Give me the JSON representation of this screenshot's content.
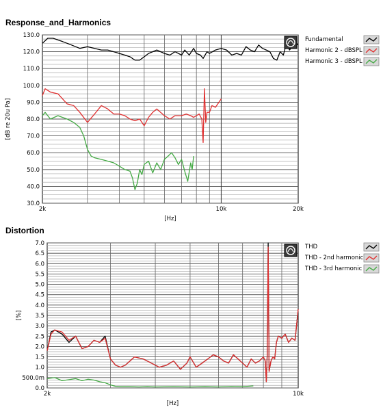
{
  "chart_data": [
    {
      "type": "line",
      "title": "Response_and_Harmonics",
      "xlabel": "[Hz]",
      "ylabel": "[dB re 20u Pa]",
      "xscale": "log",
      "xlim": [
        2000,
        20000
      ],
      "ylim": [
        30,
        130
      ],
      "grid": true,
      "legend_position": "right",
      "x_tick_labels": [
        {
          "value": 2000,
          "label": "2k"
        },
        {
          "value": 10000,
          "label": "10k"
        },
        {
          "value": 20000,
          "label": "20k"
        }
      ],
      "y_tick_labels": [
        {
          "value": 30,
          "label": "30.0"
        },
        {
          "value": 40,
          "label": "40.0"
        },
        {
          "value": 50,
          "label": "50.0"
        },
        {
          "value": 60,
          "label": "60.0"
        },
        {
          "value": 70,
          "label": "70.0"
        },
        {
          "value": 80,
          "label": "80.0"
        },
        {
          "value": 90,
          "label": "90.0"
        },
        {
          "value": 100,
          "label": "100.0"
        },
        {
          "value": 110,
          "label": "110.0"
        },
        {
          "value": 120,
          "label": "120.0"
        },
        {
          "value": 130,
          "label": "130.0"
        }
      ],
      "series": [
        {
          "name": "Fundamental",
          "color": "#000000",
          "x": [
            2000,
            2100,
            2200,
            2400,
            2600,
            2800,
            3000,
            3200,
            3400,
            3600,
            3800,
            4000,
            4200,
            4400,
            4600,
            4800,
            5000,
            5200,
            5400,
            5600,
            5800,
            6000,
            6300,
            6600,
            7000,
            7200,
            7500,
            7800,
            8000,
            8300,
            8500,
            8800,
            9000,
            9500,
            10000,
            10500,
            11000,
            11500,
            12000,
            12500,
            13000,
            13500,
            14000,
            14500,
            15000,
            15500,
            16000,
            16500,
            17000,
            17500,
            18000,
            18500,
            19000,
            19500,
            20000
          ],
          "y": [
            125,
            128,
            128,
            126,
            124,
            122,
            123,
            122,
            121,
            121,
            120,
            119,
            118,
            117,
            115,
            115,
            117,
            119,
            120,
            121,
            120,
            119,
            118,
            120,
            118,
            121,
            118,
            122,
            119,
            118,
            116,
            120,
            119,
            121,
            122,
            121,
            118,
            119,
            118,
            123,
            121,
            120,
            124,
            122,
            121,
            120,
            116,
            115,
            120,
            118,
            125,
            121,
            123,
            126,
            124
          ]
        },
        {
          "name": "Harmonic 2 - dBSPL",
          "color": "#e03030",
          "x": [
            2000,
            2050,
            2150,
            2300,
            2500,
            2650,
            2800,
            3000,
            3200,
            3400,
            3600,
            3800,
            4000,
            4200,
            4400,
            4600,
            4800,
            5000,
            5200,
            5400,
            5600,
            5800,
            6000,
            6300,
            6600,
            7000,
            7300,
            7600,
            7800,
            8000,
            8200,
            8400,
            8500,
            8600,
            8700,
            8800,
            9000,
            9200,
            9500,
            9800,
            10000
          ],
          "y": [
            94,
            98,
            96,
            95,
            89,
            88,
            84,
            78,
            83,
            88,
            86,
            83,
            83,
            82,
            80,
            79,
            80,
            76,
            81,
            84,
            86,
            84,
            82,
            80,
            82,
            82,
            83,
            82,
            81,
            82,
            83,
            80,
            66,
            98,
            78,
            84,
            84,
            88,
            87,
            90,
            92
          ]
        },
        {
          "name": "Harmonic 3 - dBSPL",
          "color": "#44aa44",
          "x": [
            2000,
            2050,
            2150,
            2300,
            2500,
            2650,
            2800,
            2900,
            3000,
            3100,
            3200,
            3400,
            3600,
            3800,
            4000,
            4200,
            4400,
            4500,
            4600,
            4700,
            4800,
            4900,
            5000,
            5200,
            5400,
            5600,
            5800,
            6000,
            6200,
            6400,
            6600,
            6800,
            7000,
            7200,
            7400,
            7600,
            7700,
            7800
          ],
          "y": [
            82,
            84,
            80,
            82,
            80,
            78,
            75,
            70,
            62,
            58,
            57,
            56,
            55,
            54,
            52,
            50,
            49,
            45,
            38,
            42,
            50,
            47,
            53,
            55,
            48,
            54,
            50,
            56,
            58,
            60,
            57,
            53,
            56,
            49,
            43,
            54,
            50,
            58
          ]
        }
      ]
    },
    {
      "type": "line",
      "title": "Distortion",
      "xlabel": "[Hz]",
      "ylabel": "[%]",
      "xscale": "log",
      "xlim": [
        2000,
        10000
      ],
      "ylim": [
        0,
        7
      ],
      "grid": true,
      "legend_position": "right",
      "x_tick_labels": [
        {
          "value": 2000,
          "label": "2k"
        },
        {
          "value": 10000,
          "label": "10k"
        }
      ],
      "y_tick_labels": [
        {
          "value": 0,
          "label": "0.0"
        },
        {
          "value": 0.5,
          "label": "500.0m"
        },
        {
          "value": 1,
          "label": "1.0"
        },
        {
          "value": 1.5,
          "label": "1.5"
        },
        {
          "value": 2,
          "label": "2.0"
        },
        {
          "value": 2.5,
          "label": "2.5"
        },
        {
          "value": 3,
          "label": "3.0"
        },
        {
          "value": 3.5,
          "label": "3.5"
        },
        {
          "value": 4,
          "label": "4.0"
        },
        {
          "value": 4.5,
          "label": "4.5"
        },
        {
          "value": 5,
          "label": "5.0"
        },
        {
          "value": 5.5,
          "label": "5.5"
        },
        {
          "value": 6,
          "label": "6.0"
        },
        {
          "value": 6.5,
          "label": "6.5"
        },
        {
          "value": 7,
          "label": "7.0"
        }
      ],
      "series": [
        {
          "name": "THD",
          "color": "#000000",
          "x": [
            2000,
            2050,
            2100,
            2200,
            2300,
            2400,
            2500,
            2600,
            2700,
            2800,
            2900,
            3000,
            3100,
            3200,
            3300,
            3400,
            3500,
            3700,
            3900,
            4100,
            4300,
            4500,
            4700,
            4900,
            5000,
            5200,
            5400,
            5600,
            5800,
            6000,
            6200,
            6400,
            6600,
            6800,
            7000,
            7200,
            7400,
            7600,
            7800,
            8000,
            8100,
            8150,
            8200,
            8250,
            8300,
            8400,
            8500,
            8600,
            8700,
            8800,
            9000,
            9200,
            9400,
            9600,
            9800,
            10000
          ],
          "y": [
            1.8,
            2.7,
            2.8,
            2.6,
            2.2,
            2.5,
            1.9,
            2.0,
            2.3,
            2.2,
            2.5,
            1.4,
            1.1,
            1.0,
            1.1,
            1.3,
            1.5,
            1.4,
            1.2,
            1.0,
            1.1,
            1.3,
            0.9,
            1.2,
            1.5,
            1.0,
            1.2,
            1.4,
            1.6,
            1.5,
            1.3,
            1.2,
            1.6,
            1.4,
            1.2,
            1.0,
            1.4,
            1.2,
            1.3,
            1.5,
            1.3,
            0.3,
            1.6,
            7.0,
            0.8,
            1.3,
            1.5,
            1.4,
            2.2,
            2.5,
            2.4,
            2.6,
            2.2,
            2.4,
            2.3,
            3.8
          ]
        },
        {
          "name": "THD - 2nd harmonic",
          "color": "#e03030",
          "x": [
            2000,
            2050,
            2100,
            2200,
            2300,
            2400,
            2500,
            2600,
            2700,
            2800,
            2900,
            3000,
            3100,
            3200,
            3300,
            3400,
            3500,
            3700,
            3900,
            4100,
            4300,
            4500,
            4700,
            4900,
            5000,
            5200,
            5400,
            5600,
            5800,
            6000,
            6200,
            6400,
            6600,
            6800,
            7000,
            7200,
            7400,
            7600,
            7800,
            8000,
            8100,
            8150,
            8200,
            8250,
            8300,
            8400,
            8500,
            8600,
            8700,
            8800,
            9000,
            9200,
            9400,
            9600,
            9800,
            10000
          ],
          "y": [
            1.8,
            2.6,
            2.8,
            2.7,
            2.3,
            2.5,
            1.9,
            2.0,
            2.3,
            2.2,
            2.4,
            1.4,
            1.1,
            1.0,
            1.1,
            1.3,
            1.5,
            1.4,
            1.2,
            1.0,
            1.1,
            1.3,
            0.9,
            1.2,
            1.5,
            1.0,
            1.2,
            1.4,
            1.6,
            1.5,
            1.3,
            1.2,
            1.6,
            1.4,
            1.2,
            1.0,
            1.4,
            1.2,
            1.3,
            1.5,
            1.3,
            0.3,
            1.6,
            6.8,
            0.8,
            1.3,
            1.5,
            1.4,
            2.2,
            2.5,
            2.4,
            2.6,
            2.2,
            2.4,
            2.3,
            3.8
          ]
        },
        {
          "name": "THD - 3rd harmonic",
          "color": "#44aa44",
          "x": [
            2000,
            2100,
            2200,
            2300,
            2400,
            2500,
            2600,
            2700,
            2800,
            2900,
            3000,
            3100,
            3200,
            3400,
            3600,
            3800,
            4000,
            4500,
            5000,
            5500,
            6000,
            6500,
            7000,
            7500
          ],
          "y": [
            0.45,
            0.5,
            0.35,
            0.4,
            0.45,
            0.35,
            0.42,
            0.38,
            0.3,
            0.25,
            0.15,
            0.08,
            0.06,
            0.06,
            0.05,
            0.06,
            0.05,
            0.06,
            0.05,
            0.06,
            0.05,
            0.07,
            0.06,
            0.1
          ]
        }
      ]
    }
  ]
}
